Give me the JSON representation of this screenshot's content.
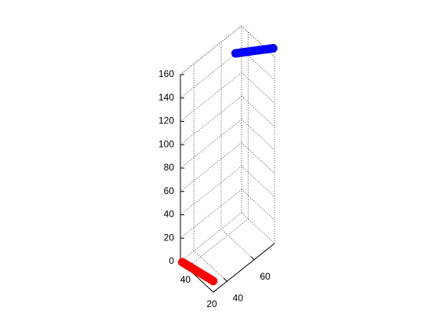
{
  "chart_data": {
    "type": "scatter3d",
    "xlim": [
      20,
      45
    ],
    "xticks": [
      20,
      40
    ],
    "ylim": [
      30,
      75
    ],
    "yticks": [
      40,
      60
    ],
    "zlim": [
      0,
      160
    ],
    "zticks": [
      0,
      20,
      40,
      60,
      80,
      100,
      120,
      140,
      160
    ],
    "grid": true,
    "series": [
      {
        "color": "#ff0000",
        "x": [
          44,
          42.6,
          41.3,
          40,
          38.6,
          37.3,
          36,
          34.6,
          33.3,
          32,
          30.6,
          29.3,
          28,
          26.6,
          25
        ],
        "y": [
          30.5,
          30.8,
          31.1,
          31.4,
          31.7,
          32,
          32.3,
          32.6,
          32.9,
          33.2,
          33.5,
          33.8,
          34.1,
          34.4,
          34.7
        ],
        "z": [
          0,
          0,
          0,
          0,
          0,
          0,
          0,
          0,
          0,
          0,
          0,
          0,
          0,
          0,
          0
        ]
      },
      {
        "color": "#0000ff",
        "x": [
          34,
          33,
          32,
          31,
          30,
          29,
          28,
          27,
          26,
          25,
          24,
          23,
          22,
          21,
          20
        ],
        "y": [
          60,
          61,
          62,
          63,
          64,
          65,
          66,
          67,
          68,
          69,
          70,
          71,
          72,
          73,
          74
        ],
        "z": [
          162,
          162.4,
          162.9,
          163.3,
          163.7,
          164.1,
          164.6,
          165,
          165.4,
          165.9,
          166.3,
          166.7,
          167.1,
          167.6,
          168
        ]
      }
    ]
  }
}
